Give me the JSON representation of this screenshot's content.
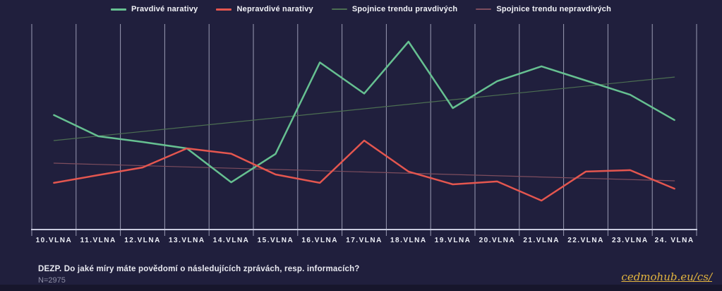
{
  "colors": {
    "background": "#201f3d",
    "gridline": "#c3c5dd",
    "axis": "#c8cade",
    "label": "#eef0f7",
    "true_series": "#66c091",
    "false_series": "#e4564f",
    "true_trend": "#4c6e52",
    "false_trend": "#7d4d5e",
    "link": "#e3b53e",
    "muted_text": "#8e8fa6"
  },
  "legend": {
    "items": [
      {
        "label": "Pravdivé narativy",
        "color": "#66c091"
      },
      {
        "label": "Nepravdivé narativy",
        "color": "#e4564f"
      },
      {
        "label": "Spojnice trendu pravdivých",
        "color": "#4c6e52"
      },
      {
        "label": "Spojnice trendu nepravdivých",
        "color": "#7d4d5e"
      }
    ]
  },
  "chart_data": {
    "type": "line",
    "title": "",
    "xlabel": "",
    "ylabel": "",
    "categories": [
      "10.VLNA",
      "11.VLNA",
      "12.VLNA",
      "13.VLNA",
      "14.VLNA",
      "15.VLNA",
      "16.VLNA",
      "17.VLNA",
      "18.VLNA",
      "19.VLNA",
      "20.VLNA",
      "21.VLNA",
      "22.VLNA",
      "23.VLNA",
      "24. VLNA"
    ],
    "ylim": [
      0,
      100
    ],
    "y_axis_visible": false,
    "grid": "vertical-only",
    "legend_position": "top",
    "note": "No y-axis tick labels are shown in the chart; values are estimated on a 0-100 relative scale of the plot area.",
    "series": [
      {
        "id": "trend-pravdive",
        "name": "Spojnice trendu pravdivých",
        "color": "#4c6e52",
        "width": 1.2,
        "trend": true,
        "values": [
          43.3,
          74.2
        ]
      },
      {
        "id": "trend-nepravdive",
        "name": "Spojnice trendu nepravdivých",
        "color": "#7d4d5e",
        "width": 1.2,
        "trend": true,
        "values": [
          32.3,
          23.7
        ]
      },
      {
        "id": "pravdive",
        "name": "Pravdivé narativy",
        "color": "#66c091",
        "width": 2.5,
        "trend": false,
        "values": [
          55.7,
          45.4,
          42.6,
          39.5,
          23.0,
          36.8,
          81.3,
          66.2,
          91.4,
          59.1,
          72.2,
          79.4,
          72.5,
          65.6,
          53.3
        ]
      },
      {
        "id": "nepravdive",
        "name": "Nepravdivé narativy",
        "color": "#e4564f",
        "width": 2.5,
        "trend": false,
        "values": [
          22.7,
          26.5,
          30.2,
          39.5,
          36.9,
          26.8,
          22.7,
          43.3,
          28.2,
          22.0,
          23.4,
          14.1,
          28.2,
          28.9,
          19.9
        ]
      }
    ]
  },
  "footer": {
    "question": "DEZP. Do jaké míry máte povědomí o následujících zprávách, resp. informacích?",
    "sample_size": "N=2975",
    "link": "cedmohub.eu/cs/"
  }
}
